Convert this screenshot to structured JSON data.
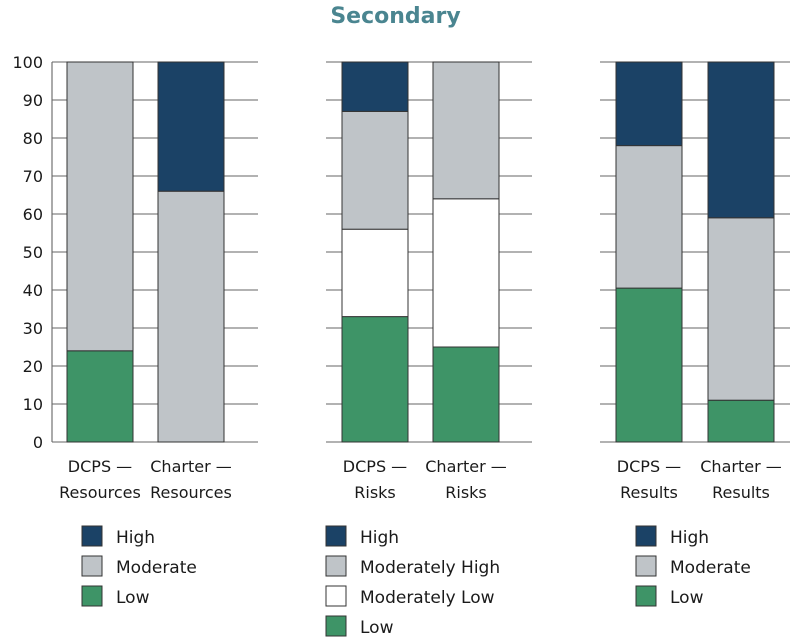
{
  "title": "Secondary",
  "colors": {
    "High": "#1b4266",
    "Moderate": "#bfc4c8",
    "Moderately High": "#bfc4c8",
    "Moderately Low": "#ffffff",
    "Low": "#3e9467"
  },
  "chart_data": {
    "type": "bar",
    "stacked": true,
    "ylim": [
      0,
      100
    ],
    "yticks": [
      0,
      10,
      20,
      30,
      40,
      50,
      60,
      70,
      80,
      90,
      100
    ],
    "grid": false,
    "panels": [
      {
        "categories": [
          [
            "DCPS —",
            "Resources"
          ],
          [
            "Charter —",
            "Resources"
          ]
        ],
        "series": [
          {
            "name": "Low",
            "values": [
              24,
              0
            ]
          },
          {
            "name": "Moderate",
            "values": [
              76,
              66
            ]
          },
          {
            "name": "High",
            "values": [
              0,
              34
            ]
          }
        ],
        "legend": [
          "High",
          "Moderate",
          "Low"
        ]
      },
      {
        "categories": [
          [
            "DCPS —",
            "Risks"
          ],
          [
            "Charter —",
            "Risks"
          ]
        ],
        "series": [
          {
            "name": "Low",
            "values": [
              33,
              25
            ]
          },
          {
            "name": "Moderately Low",
            "values": [
              23,
              39
            ]
          },
          {
            "name": "Moderately High",
            "values": [
              31,
              36
            ]
          },
          {
            "name": "High",
            "values": [
              13,
              0
            ]
          }
        ],
        "legend": [
          "High",
          "Moderately High",
          "Moderately Low",
          "Low"
        ]
      },
      {
        "categories": [
          [
            "DCPS —",
            "Results"
          ],
          [
            "Charter —",
            "Results"
          ]
        ],
        "series": [
          {
            "name": "Low",
            "values": [
              40.5,
              11
            ]
          },
          {
            "name": "Moderate",
            "values": [
              37.5,
              48
            ]
          },
          {
            "name": "High",
            "values": [
              22,
              41
            ]
          }
        ],
        "legend": [
          "High",
          "Moderate",
          "Low"
        ]
      }
    ]
  }
}
